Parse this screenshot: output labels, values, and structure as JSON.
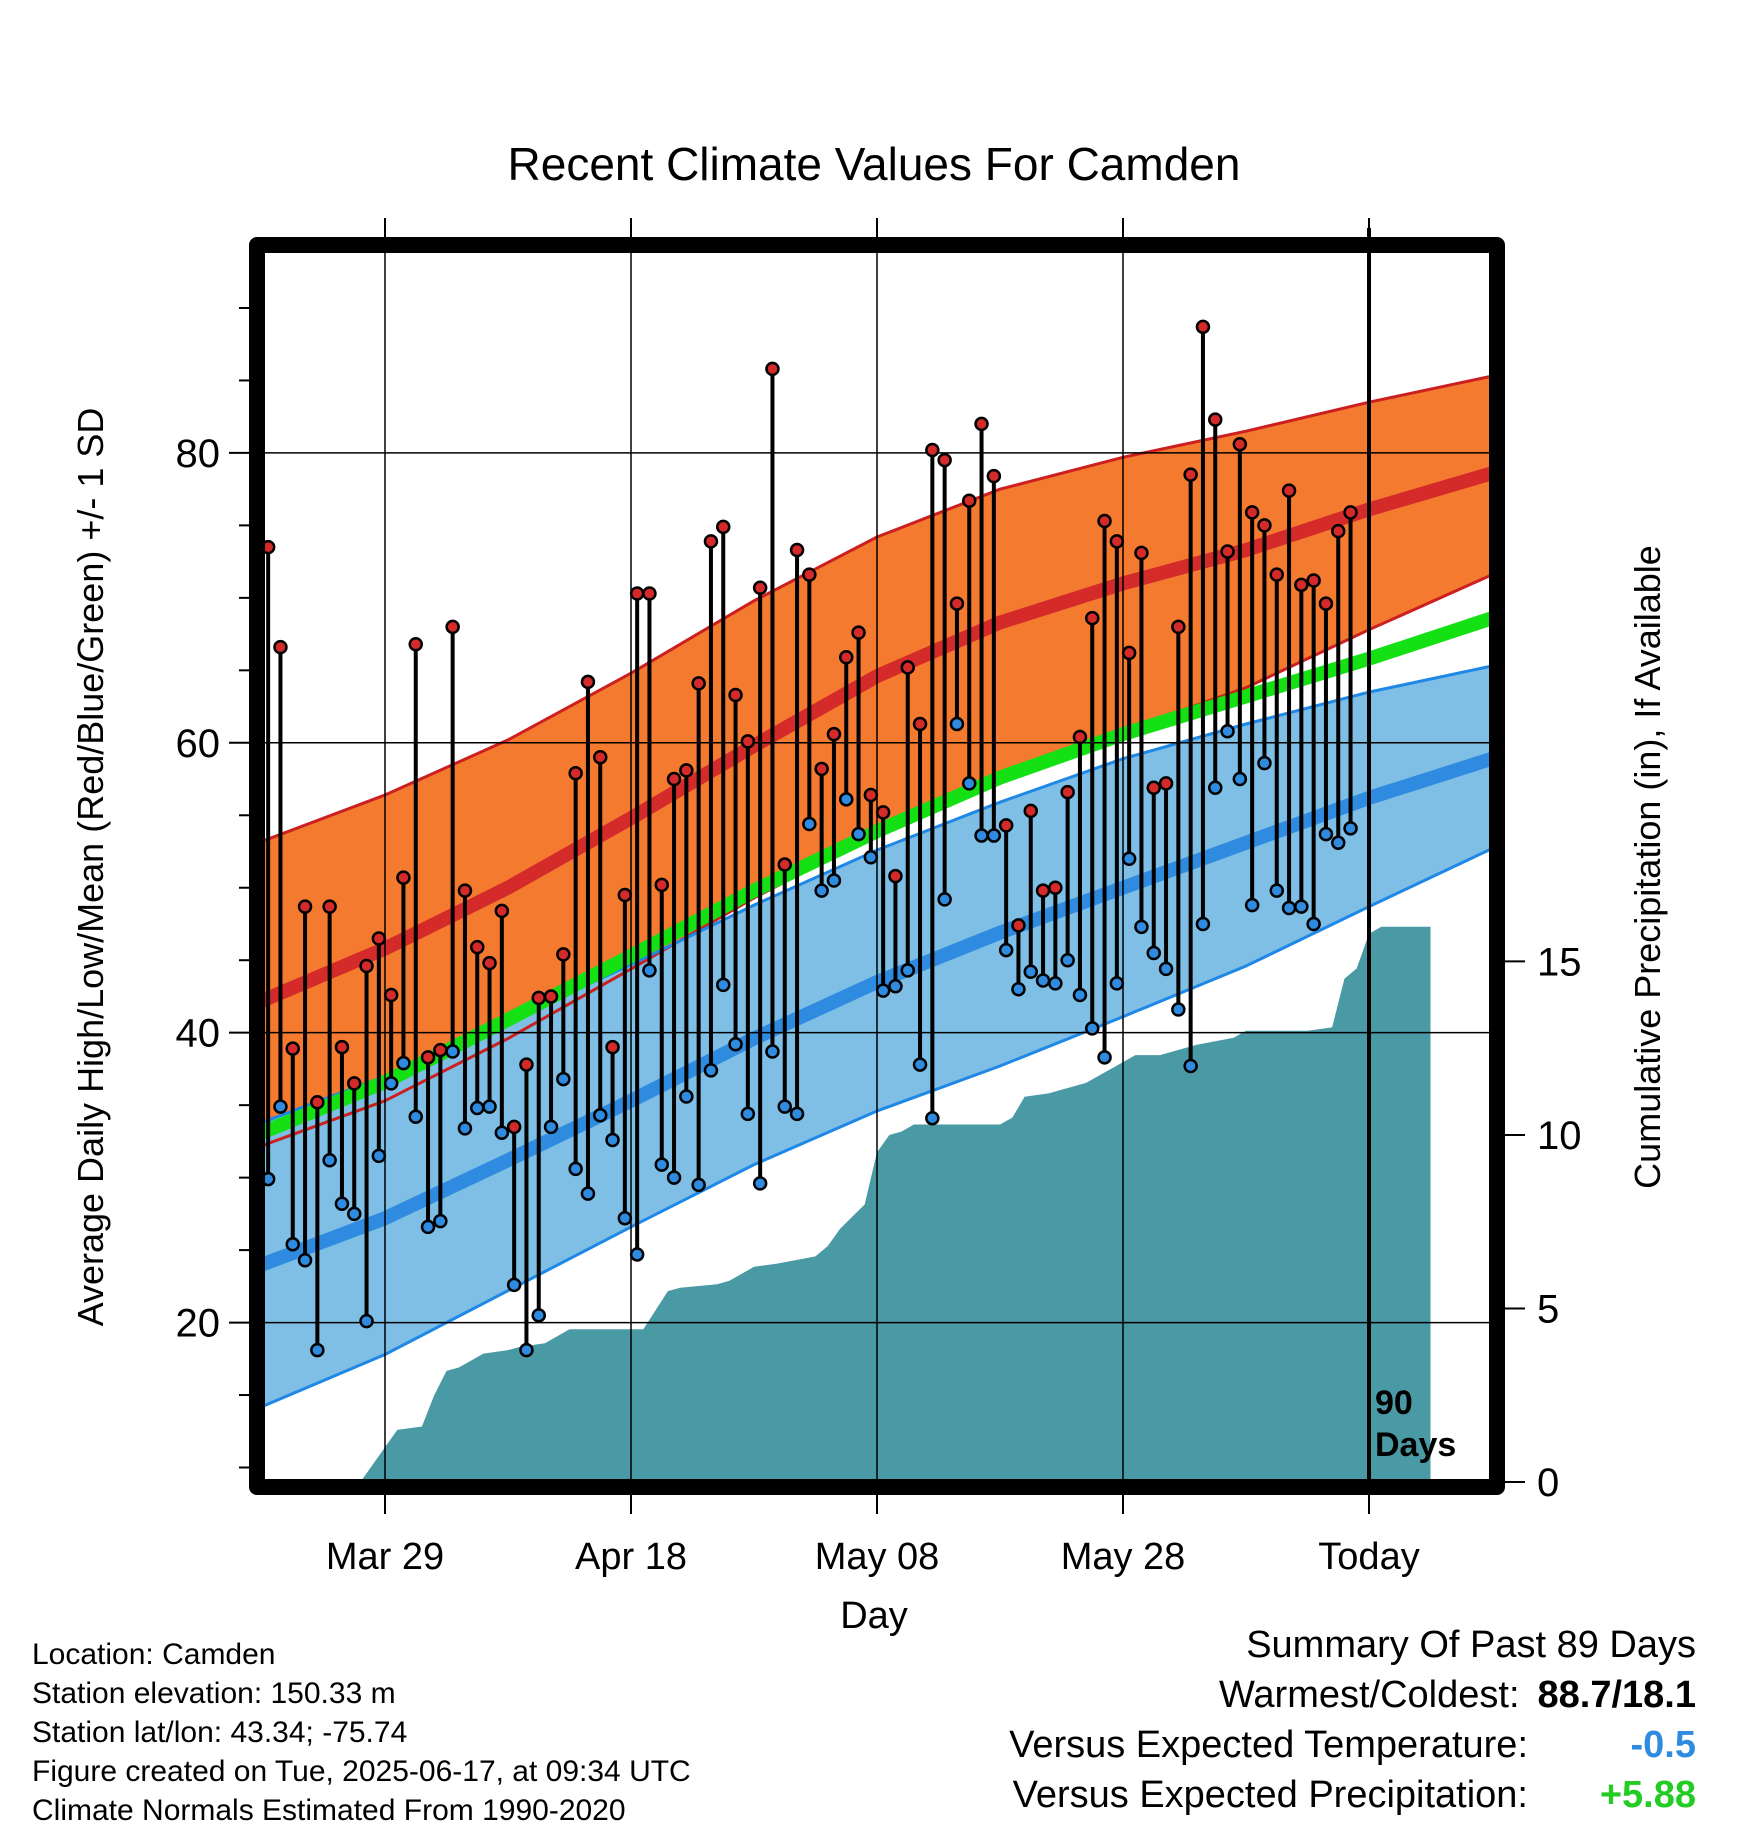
{
  "chart_data": {
    "type": "line",
    "title": "Recent Climate Values For Camden",
    "xlabel": "Day",
    "ylabel": "Average Daily High/Low/Mean (Red/Blue/Green) +/- 1 SD",
    "y2label": "Cumulative Precipitation (in), If Available",
    "x_tick_labels": [
      "Mar 29",
      "Apr 18",
      "May 08",
      "May 28",
      "Today"
    ],
    "y_ticks": [
      "20",
      "40",
      "60",
      "80"
    ],
    "y2_ticks": [
      "0",
      "5",
      "10",
      "15"
    ],
    "ylim": [
      9,
      94
    ],
    "y2lim": [
      0,
      35.5
    ],
    "x_start": "Mar 19",
    "x_end": "Jun 26",
    "today": "Jun 17",
    "today_label_line1": "90",
    "today_label_line2": "Days",
    "grid": true,
    "normals": {
      "x_days": [
        0,
        10,
        20,
        30,
        40,
        50,
        60,
        70,
        80,
        90,
        100
      ],
      "high_mean": [
        42.2,
        45.8,
        50.0,
        54.8,
        59.8,
        64.6,
        68.3,
        71.0,
        73.3,
        76.1,
        78.6
      ],
      "high_plus_sd": [
        53.2,
        56.4,
        60.2,
        64.8,
        69.8,
        74.2,
        77.5,
        79.7,
        81.5,
        83.5,
        85.3
      ],
      "high_minus_sd": [
        32.2,
        35.3,
        39.6,
        44.4,
        49.3,
        53.7,
        57.5,
        60.8,
        63.8,
        67.8,
        71.6
      ],
      "mean_normal": [
        33.1,
        36.6,
        40.9,
        45.3,
        49.8,
        53.9,
        57.6,
        60.6,
        63.2,
        65.8,
        68.6
      ],
      "low_mean": [
        24.0,
        27.2,
        31.2,
        35.3,
        39.6,
        43.5,
        46.9,
        50.0,
        53.1,
        56.2,
        58.9
      ],
      "low_plus_sd": [
        33.8,
        37.0,
        40.8,
        44.7,
        48.8,
        52.6,
        55.9,
        58.9,
        61.3,
        63.5,
        65.3
      ],
      "low_minus_sd": [
        14.2,
        17.8,
        22.2,
        26.6,
        30.9,
        34.6,
        37.7,
        41.1,
        44.6,
        48.7,
        52.7
      ]
    },
    "series": [
      {
        "name": "High",
        "color": "#d42a2a",
        "values": [
          73.5,
          66.6,
          38.9,
          48.7,
          35.2,
          48.7,
          39.0,
          36.5,
          44.6,
          46.5,
          42.6,
          50.7,
          66.8,
          38.3,
          38.8,
          68.0,
          49.8,
          45.9,
          44.8,
          48.4,
          33.5,
          37.8,
          42.4,
          42.5,
          45.4,
          57.9,
          64.2,
          59.0,
          39.0,
          49.5,
          70.3,
          70.3,
          50.2,
          57.5,
          58.1,
          64.1,
          73.9,
          74.9,
          63.3,
          60.1,
          70.7,
          85.8,
          51.6,
          73.3,
          71.6,
          58.2,
          60.6,
          65.9,
          67.6,
          56.4,
          55.2,
          50.8,
          65.2,
          61.3,
          80.2,
          79.5,
          69.6,
          76.7,
          82.0,
          78.4,
          54.3,
          47.4,
          55.3,
          49.8,
          50.0,
          56.6,
          60.4,
          68.6,
          75.3,
          73.9,
          66.2,
          73.1,
          56.9,
          57.2,
          68.0,
          78.5,
          88.7,
          82.3,
          73.2,
          80.6,
          75.9,
          75.0,
          71.6,
          77.4,
          70.9,
          71.2,
          69.6,
          74.6,
          75.9
        ]
      },
      {
        "name": "Low",
        "color": "#2f8be0",
        "values": [
          29.9,
          34.9,
          25.4,
          24.3,
          18.1,
          31.2,
          28.2,
          27.5,
          20.1,
          31.5,
          36.5,
          37.9,
          34.2,
          26.6,
          27.0,
          38.7,
          33.4,
          34.8,
          34.9,
          33.1,
          22.6,
          18.1,
          20.5,
          33.5,
          36.8,
          30.6,
          28.9,
          34.3,
          32.6,
          27.2,
          24.7,
          44.3,
          30.9,
          30.0,
          35.6,
          29.5,
          37.4,
          43.3,
          39.2,
          34.4,
          29.6,
          38.7,
          34.9,
          34.4,
          54.4,
          49.8,
          50.5,
          56.1,
          53.7,
          52.1,
          42.9,
          43.2,
          44.3,
          37.8,
          34.1,
          49.2,
          61.3,
          57.2,
          53.6,
          53.6,
          45.7,
          43.0,
          44.2,
          43.6,
          43.4,
          45.0,
          42.6,
          40.3,
          38.3,
          43.4,
          52.0,
          47.3,
          45.5,
          44.4,
          41.6,
          37.7,
          47.5,
          56.9,
          60.8,
          57.5,
          48.8,
          58.6,
          49.8,
          48.6,
          48.7,
          47.5,
          53.7,
          53.1,
          54.1
        ]
      },
      {
        "name": "Cumulative Precipitation",
        "color": "#4a9aa5",
        "x_days": [
          0,
          8,
          9,
          11,
          13,
          14,
          15,
          16,
          18,
          20,
          21,
          23,
          25,
          28,
          31,
          33,
          34,
          37,
          38,
          40,
          42,
          45,
          46,
          47,
          49,
          50,
          51,
          52,
          53,
          55,
          57,
          60,
          61,
          62,
          64,
          65,
          67,
          70,
          71,
          72,
          73,
          76,
          79,
          80,
          81,
          83,
          85,
          87,
          88,
          89,
          90,
          91,
          95
        ],
        "values": [
          0,
          0,
          0.5,
          1.5,
          1.6,
          2.5,
          3.2,
          3.3,
          3.7,
          3.8,
          3.9,
          4.0,
          4.4,
          4.4,
          4.4,
          5.5,
          5.6,
          5.7,
          5.8,
          6.2,
          6.3,
          6.5,
          6.8,
          7.3,
          8.0,
          9.5,
          10.0,
          10.1,
          10.3,
          10.3,
          10.3,
          10.3,
          10.5,
          11.1,
          11.2,
          11.3,
          11.5,
          12.1,
          12.3,
          12.3,
          12.3,
          12.6,
          12.8,
          13.0,
          13.0,
          13.0,
          13.0,
          13.1,
          14.5,
          14.8,
          15.8,
          16.0,
          16.0
        ]
      }
    ]
  },
  "info": {
    "location": "Location: Camden",
    "elevation": "Station elevation: 150.33 m",
    "latlon": "Station lat/lon: 43.34; -75.74",
    "created": "Figure created on Tue, 2025-06-17, at 09:34 UTC",
    "normals_source": "Climate Normals Estimated From 1990-2020"
  },
  "summary": {
    "title": "Summary Of Past 89 Days",
    "warmest_label": "Warmest/Coldest:",
    "warmest_value": "88.7/18.1",
    "temp_label": "Versus Expected Temperature:",
    "temp_value": "-0.5",
    "temp_color": "#2f8be0",
    "precip_label": "Versus Expected Precipitation:",
    "precip_value": "+5.88",
    "precip_color": "#22cc22"
  },
  "colors": {
    "high_band": "#f47a30",
    "high_line": "#d42a2a",
    "band_edge_red": "#cc2020",
    "mean_line": "#14e014",
    "low_band": "#7fbfe6",
    "low_line": "#2f8be0",
    "band_edge_blue": "#1f88e6",
    "precip_fill": "#4a9aa5"
  }
}
